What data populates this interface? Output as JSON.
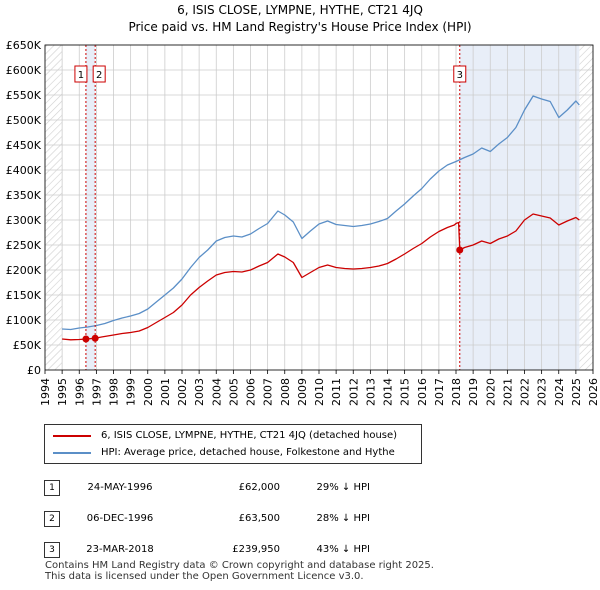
{
  "title_line1": "6, ISIS CLOSE, LYMPNE, HYTHE, CT21 4JQ",
  "title_line2": "Price paid vs. HM Land Registry's House Price Index (HPI)",
  "chart_data": {
    "type": "line",
    "xlim": [
      1994,
      2026
    ],
    "ylim": [
      0,
      650000
    ],
    "y_ticks": [
      0,
      50000,
      100000,
      150000,
      200000,
      250000,
      300000,
      350000,
      400000,
      450000,
      500000,
      550000,
      600000,
      650000
    ],
    "y_tick_labels": [
      "£0",
      "£50K",
      "£100K",
      "£150K",
      "£200K",
      "£250K",
      "£300K",
      "£350K",
      "£400K",
      "£450K",
      "£500K",
      "£550K",
      "£600K",
      "£650K"
    ],
    "x_ticks": [
      1994,
      1995,
      1996,
      1997,
      1998,
      1999,
      2000,
      2001,
      2002,
      2003,
      2004,
      2005,
      2006,
      2007,
      2008,
      2009,
      2010,
      2011,
      2012,
      2013,
      2014,
      2015,
      2016,
      2017,
      2018,
      2019,
      2020,
      2021,
      2022,
      2023,
      2024,
      2025,
      2026
    ],
    "x_tick_labels": [
      "1994",
      "1995",
      "1996",
      "1997",
      "1998",
      "1999",
      "2000",
      "2001",
      "2002",
      "2003",
      "2004",
      "2005",
      "2006",
      "2007",
      "2008",
      "2009",
      "2010",
      "2011",
      "2012",
      "2013",
      "2014",
      "2015",
      "2016",
      "2017",
      "2018",
      "2019",
      "2020",
      "2021",
      "2022",
      "2023",
      "2024",
      "2025",
      "2026"
    ],
    "grid": true,
    "data_start": 1995,
    "data_end": 2025.2,
    "shaded_regions": [
      [
        1996.39,
        1996.93
      ],
      [
        2018.22,
        2025.2
      ]
    ],
    "hatched_regions": [
      [
        1994,
        1995
      ],
      [
        2025.2,
        2026
      ]
    ],
    "series": [
      {
        "name": "6, ISIS CLOSE, LYMPNE, HYTHE, CT21 4JQ (detached house)",
        "color": "#cc0000",
        "points": [
          [
            1995.0,
            62000
          ],
          [
            1995.5,
            60500
          ],
          [
            1996.0,
            61000
          ],
          [
            1996.39,
            62000
          ],
          [
            1996.93,
            63500
          ],
          [
            1997.3,
            66000
          ],
          [
            1998.0,
            70000
          ],
          [
            1998.5,
            73000
          ],
          [
            1999.0,
            75000
          ],
          [
            1999.5,
            78000
          ],
          [
            2000.0,
            85000
          ],
          [
            2000.5,
            95000
          ],
          [
            2001.0,
            105000
          ],
          [
            2001.5,
            115000
          ],
          [
            2002.0,
            130000
          ],
          [
            2002.5,
            150000
          ],
          [
            2003.0,
            165000
          ],
          [
            2003.5,
            178000
          ],
          [
            2004.0,
            190000
          ],
          [
            2004.5,
            195000
          ],
          [
            2005.0,
            197000
          ],
          [
            2005.5,
            196000
          ],
          [
            2006.0,
            200000
          ],
          [
            2006.5,
            208000
          ],
          [
            2007.0,
            215000
          ],
          [
            2007.6,
            232000
          ],
          [
            2008.0,
            226000
          ],
          [
            2008.5,
            215000
          ],
          [
            2009.0,
            185000
          ],
          [
            2009.5,
            195000
          ],
          [
            2010.0,
            205000
          ],
          [
            2010.5,
            210000
          ],
          [
            2011.0,
            205000
          ],
          [
            2011.5,
            203000
          ],
          [
            2012.0,
            202000
          ],
          [
            2012.5,
            203000
          ],
          [
            2013.0,
            205000
          ],
          [
            2013.5,
            208000
          ],
          [
            2014.0,
            213000
          ],
          [
            2014.5,
            222000
          ],
          [
            2015.0,
            232000
          ],
          [
            2015.5,
            243000
          ],
          [
            2016.0,
            253000
          ],
          [
            2016.5,
            266000
          ],
          [
            2017.0,
            277000
          ],
          [
            2017.5,
            285000
          ],
          [
            2017.9,
            290000
          ],
          [
            2018.0,
            293000
          ],
          [
            2018.15,
            295000
          ],
          [
            2018.22,
            239950
          ],
          [
            2018.5,
            245000
          ],
          [
            2019.0,
            250000
          ],
          [
            2019.5,
            258000
          ],
          [
            2020.0,
            253000
          ],
          [
            2020.5,
            262000
          ],
          [
            2021.0,
            268000
          ],
          [
            2021.5,
            278000
          ],
          [
            2022.0,
            300000
          ],
          [
            2022.5,
            312000
          ],
          [
            2023.0,
            308000
          ],
          [
            2023.5,
            304000
          ],
          [
            2024.0,
            290000
          ],
          [
            2024.5,
            298000
          ],
          [
            2025.0,
            305000
          ],
          [
            2025.2,
            300000
          ]
        ]
      },
      {
        "name": "HPI: Average price, detached house, Folkestone and Hythe",
        "color": "#5b8fc7",
        "points": [
          [
            1995.0,
            82000
          ],
          [
            1995.5,
            81000
          ],
          [
            1996.0,
            84000
          ],
          [
            1996.5,
            86000
          ],
          [
            1997.0,
            89000
          ],
          [
            1997.5,
            93000
          ],
          [
            1998.0,
            99000
          ],
          [
            1998.5,
            104000
          ],
          [
            1999.0,
            108000
          ],
          [
            1999.5,
            113000
          ],
          [
            2000.0,
            122000
          ],
          [
            2000.5,
            136000
          ],
          [
            2001.0,
            150000
          ],
          [
            2001.5,
            164000
          ],
          [
            2002.0,
            182000
          ],
          [
            2002.5,
            205000
          ],
          [
            2003.0,
            225000
          ],
          [
            2003.5,
            240000
          ],
          [
            2004.0,
            258000
          ],
          [
            2004.5,
            265000
          ],
          [
            2005.0,
            268000
          ],
          [
            2005.5,
            266000
          ],
          [
            2006.0,
            272000
          ],
          [
            2006.5,
            283000
          ],
          [
            2007.0,
            293000
          ],
          [
            2007.6,
            318000
          ],
          [
            2008.0,
            310000
          ],
          [
            2008.5,
            296000
          ],
          [
            2009.0,
            263000
          ],
          [
            2009.5,
            278000
          ],
          [
            2010.0,
            292000
          ],
          [
            2010.5,
            298000
          ],
          [
            2011.0,
            291000
          ],
          [
            2011.5,
            289000
          ],
          [
            2012.0,
            287000
          ],
          [
            2012.5,
            289000
          ],
          [
            2013.0,
            292000
          ],
          [
            2013.5,
            297000
          ],
          [
            2014.0,
            303000
          ],
          [
            2014.5,
            318000
          ],
          [
            2015.0,
            332000
          ],
          [
            2015.5,
            348000
          ],
          [
            2016.0,
            363000
          ],
          [
            2016.5,
            382000
          ],
          [
            2017.0,
            398000
          ],
          [
            2017.5,
            410000
          ],
          [
            2018.0,
            417000
          ],
          [
            2018.5,
            425000
          ],
          [
            2019.0,
            432000
          ],
          [
            2019.5,
            444000
          ],
          [
            2020.0,
            437000
          ],
          [
            2020.5,
            452000
          ],
          [
            2021.0,
            465000
          ],
          [
            2021.5,
            485000
          ],
          [
            2022.0,
            520000
          ],
          [
            2022.5,
            548000
          ],
          [
            2023.0,
            542000
          ],
          [
            2023.5,
            537000
          ],
          [
            2024.0,
            505000
          ],
          [
            2024.5,
            520000
          ],
          [
            2025.0,
            538000
          ],
          [
            2025.2,
            530000
          ]
        ]
      }
    ],
    "sales": [
      {
        "id": "1",
        "x": 1996.39,
        "price": 62000
      },
      {
        "id": "2",
        "x": 1996.93,
        "price": 63500
      },
      {
        "id": "3",
        "x": 2018.22,
        "price": 239950
      }
    ]
  },
  "legend": {
    "property_label": "6, ISIS CLOSE, LYMPNE, HYTHE, CT21 4JQ (detached house)",
    "hpi_label": "HPI: Average price, detached house, Folkestone and Hythe"
  },
  "sales_table": [
    {
      "num": "1",
      "date": "24-MAY-1996",
      "price": "£62,000",
      "hpi": "29% ↓ HPI"
    },
    {
      "num": "2",
      "date": "06-DEC-1996",
      "price": "£63,500",
      "hpi": "28% ↓ HPI"
    },
    {
      "num": "3",
      "date": "23-MAR-2018",
      "price": "£239,950",
      "hpi": "43% ↓ HPI"
    }
  ],
  "footer_line1": "Contains HM Land Registry data © Crown copyright and database right 2025.",
  "footer_line2": "This data is licensed under the Open Government Licence v3.0.",
  "colors": {
    "property": "#cc0000",
    "hpi": "#5b8fc7",
    "shade": "#e8eef8",
    "grid": "#cccccc"
  }
}
